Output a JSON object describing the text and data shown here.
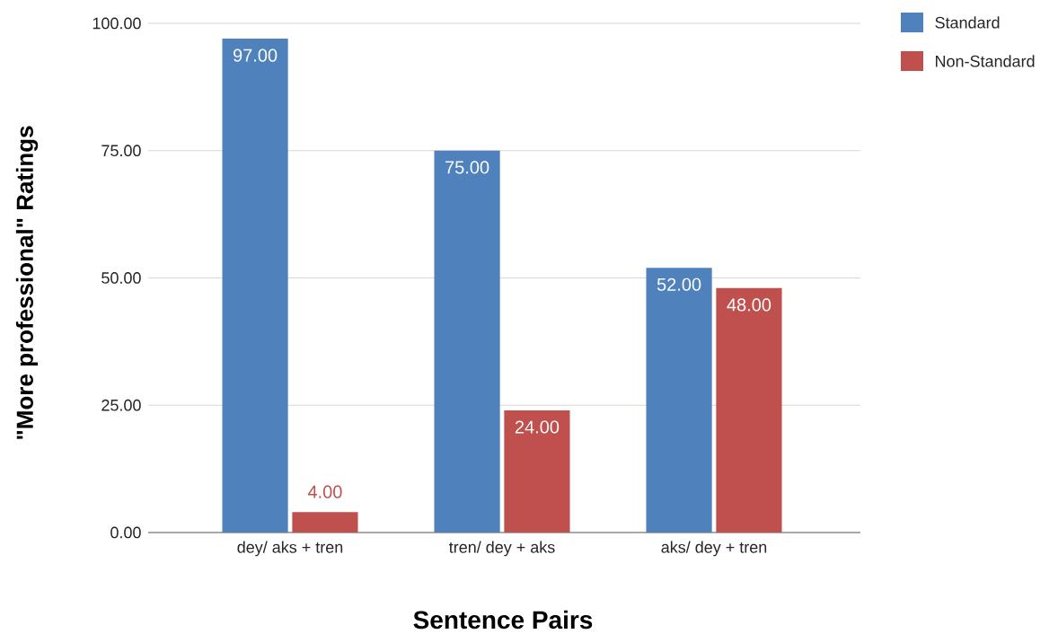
{
  "chart_data": {
    "type": "bar",
    "xlabel": "Sentence Pairs",
    "ylabel": "\"More professional\" Ratings",
    "categories": [
      "dey/ aks + tren",
      "tren/ dey + aks",
      "aks/ dey + tren"
    ],
    "series": [
      {
        "name": "Standard",
        "color": "#4f81bd",
        "values": [
          97,
          75,
          52
        ],
        "value_labels": [
          "97.00",
          "75.00",
          "52.00"
        ]
      },
      {
        "name": "Non-Standard",
        "color": "#c0504d",
        "values": [
          4,
          24,
          48
        ],
        "value_labels": [
          "4.00",
          "24.00",
          "48.00"
        ]
      }
    ],
    "ylim": [
      0,
      100
    ],
    "yticks": [
      {
        "value": 0,
        "label": "0.00"
      },
      {
        "value": 25,
        "label": "25.00"
      },
      {
        "value": 50,
        "label": "50.00"
      },
      {
        "value": 75,
        "label": "75.00"
      },
      {
        "value": 100,
        "label": "100.00"
      }
    ],
    "grid": "y",
    "legend": "top right"
  }
}
